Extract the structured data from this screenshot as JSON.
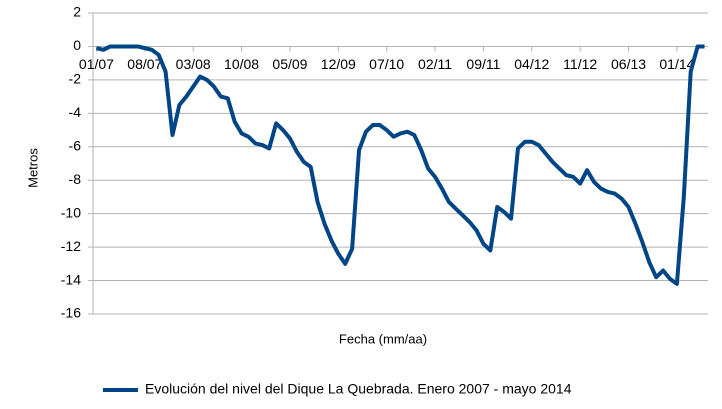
{
  "chart_data": {
    "type": "line",
    "x_label": "Fecha (mm/aa)",
    "y_label": "Metros",
    "categories": [
      "01/07",
      null,
      null,
      null,
      null,
      null,
      null,
      "08/07",
      null,
      null,
      null,
      null,
      null,
      null,
      "03/08",
      null,
      null,
      null,
      null,
      null,
      null,
      "10/08",
      null,
      null,
      null,
      null,
      null,
      null,
      "05/09",
      null,
      null,
      null,
      null,
      null,
      null,
      "12/09",
      null,
      null,
      null,
      null,
      null,
      null,
      "07/10",
      null,
      null,
      null,
      null,
      null,
      null,
      "02/11",
      null,
      null,
      null,
      null,
      null,
      null,
      "09/11",
      null,
      null,
      null,
      null,
      null,
      null,
      "04/12",
      null,
      null,
      null,
      null,
      null,
      null,
      "11/12",
      null,
      null,
      null,
      null,
      null,
      null,
      "06/13",
      null,
      null,
      null,
      null,
      null,
      null,
      "01/14",
      null,
      null,
      null,
      null
    ],
    "series": [
      {
        "name": "Evolución del nivel del Dique La Quebrada. Enero 2007 - mayo 2014",
        "color": "#004586",
        "values": [
          -0.1,
          -0.2,
          0,
          0,
          0,
          0,
          0,
          -0.1,
          -0.2,
          -0.5,
          -1.5,
          -5.3,
          -3.5,
          -3.0,
          -2.4,
          -1.8,
          -2.0,
          -2.4,
          -3.0,
          -3.1,
          -4.5,
          -5.2,
          -5.4,
          -5.8,
          -5.9,
          -6.1,
          -4.6,
          -5.0,
          -5.5,
          -6.3,
          -6.9,
          -7.2,
          -9.3,
          -10.6,
          -11.6,
          -12.4,
          -13.0,
          -12.1,
          -6.2,
          -5.1,
          -4.7,
          -4.7,
          -5.0,
          -5.4,
          -5.2,
          -5.1,
          -5.3,
          -6.2,
          -7.3,
          -7.8,
          -8.5,
          -9.3,
          -9.7,
          -10.1,
          -10.5,
          -11.0,
          -11.8,
          -12.2,
          -9.6,
          -9.9,
          -10.3,
          -6.1,
          -5.7,
          -5.7,
          -5.9,
          -6.4,
          -6.9,
          -7.3,
          -7.7,
          -7.8,
          -8.2,
          -7.4,
          -8.1,
          -8.5,
          -8.7,
          -8.8,
          -9.1,
          -9.6,
          -10.6,
          -11.7,
          -12.9,
          -13.8,
          -13.4,
          -13.9,
          -14.2,
          -9.0,
          -1.5,
          0,
          0
        ]
      }
    ],
    "ylim": [
      -16,
      2
    ],
    "yticks": [
      -16,
      -14,
      -12,
      -10,
      -8,
      -6,
      -4,
      -2,
      0,
      2
    ],
    "grid": true,
    "legend": "bottom"
  }
}
